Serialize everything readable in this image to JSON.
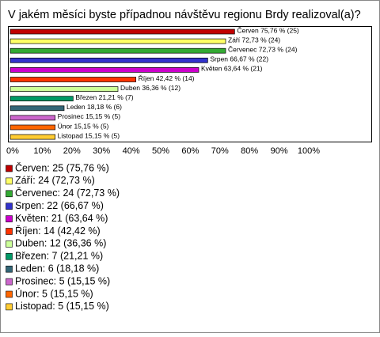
{
  "chart_data": {
    "type": "bar",
    "orientation": "horizontal",
    "title": "V jakém měsíci byste případnou návštěvu regionu Brdy realizoval(a)?",
    "categories": [
      "Červen",
      "Září",
      "Červenec",
      "Srpen",
      "Květen",
      "Říjen",
      "Duben",
      "Březen",
      "Leden",
      "Prosinec",
      "Únor",
      "Listopad"
    ],
    "values": [
      75.76,
      72.73,
      72.73,
      66.67,
      63.64,
      42.42,
      36.36,
      21.21,
      18.18,
      15.15,
      15.15,
      15.15
    ],
    "counts": [
      25,
      24,
      24,
      22,
      21,
      14,
      12,
      7,
      6,
      5,
      5,
      5
    ],
    "value_labels": [
      "Červen 75,76 % (25)",
      "Září 72,73 % (24)",
      "Červenec 72,73 % (24)",
      "Srpen 66,67 % (22)",
      "Květen 63,64 % (21)",
      "Říjen 42,42 % (14)",
      "Duben 36,36 % (12)",
      "Březen 21,21 % (7)",
      "Leden 18,18 % (6)",
      "Prosinec 15,15 % (5)",
      "Únor 15,15 % (5)",
      "Listopad 15,15 % (5)"
    ],
    "legend_labels": [
      "Červen: 25 (75,76 %)",
      "Září: 24 (72,73 %)",
      "Červenec: 24 (72,73 %)",
      "Srpen: 22 (66,67 %)",
      "Květen: 21 (63,64 %)",
      "Říjen: 14 (42,42 %)",
      "Duben: 12 (36,36 %)",
      "Březen: 7 (21,21 %)",
      "Leden: 6 (18,18 %)",
      "Prosinec: 5 (15,15 %)",
      "Únor: 5 (15,15 %)",
      "Listopad: 5 (15,15 %)"
    ],
    "colors": [
      "#c00000",
      "#ffff66",
      "#33aa33",
      "#3333cc",
      "#cc00cc",
      "#ff3300",
      "#ccff99",
      "#009966",
      "#336677",
      "#cc66cc",
      "#ff6600",
      "#ffcc33"
    ],
    "xlim": [
      0,
      100
    ],
    "xticks": [
      {
        "value": 0,
        "label": "0%"
      },
      {
        "value": 10,
        "label": "10%"
      },
      {
        "value": 20,
        "label": "20%"
      },
      {
        "value": 30,
        "label": "30%"
      },
      {
        "value": 40,
        "label": "40%"
      },
      {
        "value": 50,
        "label": "50%"
      },
      {
        "value": 60,
        "label": "60%"
      },
      {
        "value": 70,
        "label": "70%"
      },
      {
        "value": 80,
        "label": "80%"
      },
      {
        "value": 90,
        "label": "90%"
      },
      {
        "value": 100,
        "label": "100%"
      }
    ]
  }
}
